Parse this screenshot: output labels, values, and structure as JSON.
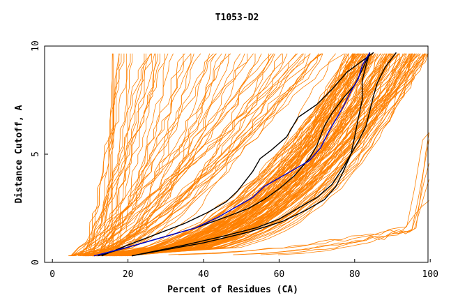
{
  "chart_data": {
    "type": "line",
    "title": "T1053-D2",
    "xlabel": "Percent of Residues (CA)",
    "ylabel": "Distance Cutoff, A",
    "xlim": [
      0,
      100
    ],
    "ylim": [
      0,
      10
    ],
    "x_ticks": [
      "0",
      "20",
      "40",
      "60",
      "80",
      "100"
    ],
    "y_ticks": [
      "0",
      "5",
      "10"
    ],
    "grid": false,
    "colors": {
      "background": "#ffffff",
      "model_curves": "#ff8000",
      "highlight_black": "#000000",
      "highlight_blue": "#0000cc"
    },
    "series": [
      {
        "color": "#000000",
        "x": [
          13,
          20,
          35,
          41,
          46,
          49,
          53,
          55,
          58,
          62,
          65,
          70,
          74,
          78,
          85
        ],
        "y": [
          0.3,
          0.8,
          1.8,
          2.3,
          2.8,
          3.3,
          4.2,
          4.8,
          5.2,
          5.8,
          6.7,
          7.3,
          8.0,
          8.8,
          9.7
        ]
      },
      {
        "color": "#000000",
        "x": [
          12,
          20,
          30,
          38,
          46,
          52,
          56,
          60,
          64,
          68,
          70,
          72,
          74,
          77,
          80,
          82,
          84
        ],
        "y": [
          0.3,
          0.7,
          1.2,
          1.6,
          2.1,
          2.5,
          2.9,
          3.4,
          4.0,
          4.8,
          5.4,
          6.3,
          6.9,
          7.6,
          8.2,
          8.9,
          9.7
        ]
      },
      {
        "color": "#000000",
        "x": [
          21,
          35,
          45,
          54,
          60,
          65,
          70,
          74,
          77,
          79,
          80,
          81,
          82,
          82,
          83,
          84
        ],
        "y": [
          0.3,
          0.8,
          1.2,
          1.6,
          2.0,
          2.5,
          3.0,
          3.6,
          4.4,
          5.0,
          5.8,
          6.7,
          7.5,
          8.4,
          9.1,
          9.7
        ]
      },
      {
        "color": "#000000",
        "x": [
          21,
          40,
          52,
          61,
          67,
          72,
          75,
          77,
          79,
          81,
          83,
          84,
          85,
          86,
          88,
          91
        ],
        "y": [
          0.3,
          0.9,
          1.4,
          1.9,
          2.4,
          2.9,
          3.5,
          4.2,
          5.0,
          5.6,
          6.3,
          7.0,
          7.7,
          8.3,
          9.0,
          9.7
        ]
      },
      {
        "color": "#0000cc",
        "x": [
          11,
          20,
          30,
          38,
          44,
          49,
          53,
          56,
          60,
          64,
          68,
          71,
          73,
          75,
          77,
          79,
          81,
          82,
          84
        ],
        "y": [
          0.3,
          0.7,
          1.2,
          1.6,
          2.1,
          2.6,
          3.0,
          3.5,
          3.9,
          4.3,
          4.7,
          5.3,
          6.0,
          6.6,
          7.2,
          7.9,
          8.5,
          9.1,
          9.7
        ]
      }
    ]
  }
}
